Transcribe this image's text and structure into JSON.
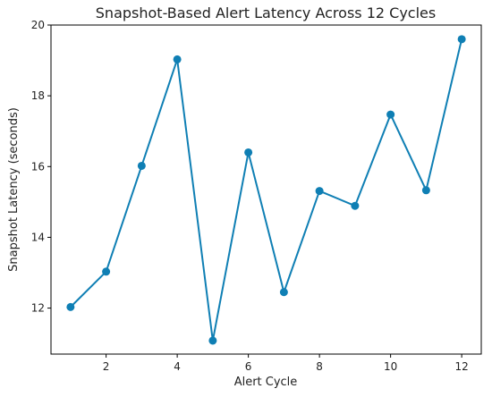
{
  "chart_data": {
    "type": "line",
    "title": "Snapshot-Based Alert Latency Across 12 Cycles",
    "xlabel": "Alert Cycle",
    "ylabel": "Snapshot Latency (seconds)",
    "x": [
      1,
      2,
      3,
      4,
      5,
      6,
      7,
      8,
      9,
      10,
      11,
      12
    ],
    "series": [
      {
        "values": [
          12.03,
          13.03,
          16.02,
          19.03,
          11.08,
          16.4,
          12.45,
          15.31,
          14.89,
          17.47,
          15.33,
          19.6
        ],
        "color": "#0f7fb4",
        "marker": "circle"
      }
    ],
    "xlim": [
      0.45,
      12.55
    ],
    "ylim": [
      10.7,
      20.0
    ],
    "xticks": [
      2,
      4,
      6,
      8,
      10,
      12
    ],
    "yticks": [
      12,
      14,
      16,
      18,
      20
    ],
    "xtick_labels": [
      "2",
      "4",
      "6",
      "8",
      "10",
      "12"
    ],
    "ytick_labels": [
      "12",
      "14",
      "16",
      "18",
      "20"
    ],
    "grid": false,
    "legend": "none"
  }
}
